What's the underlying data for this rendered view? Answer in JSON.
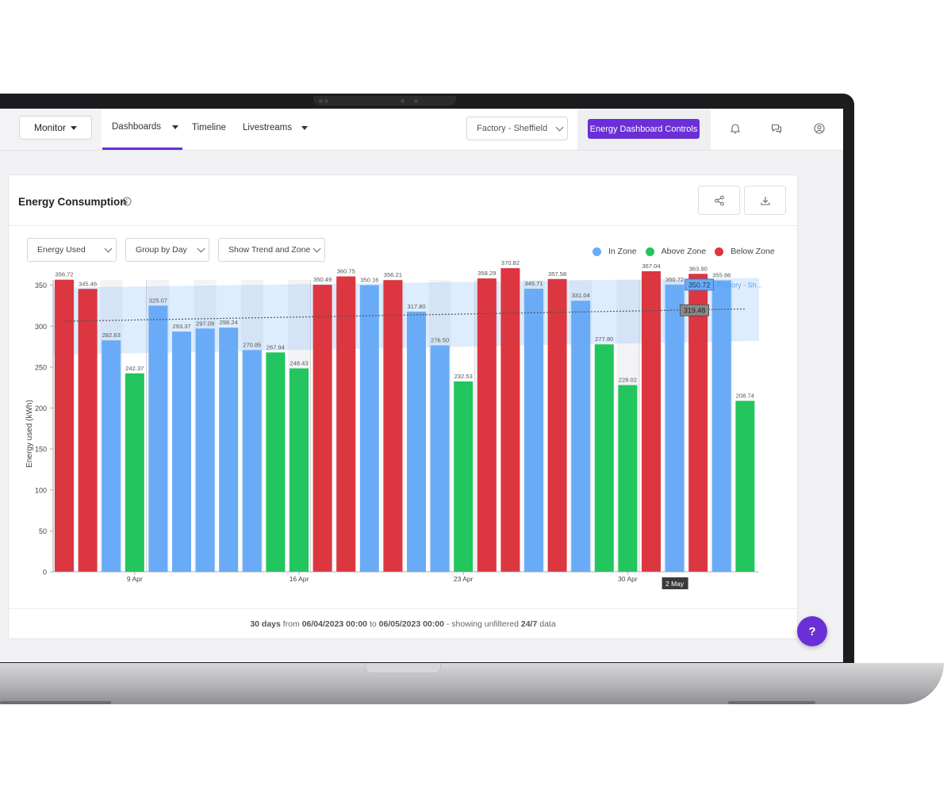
{
  "nav": {
    "monitor_label": "Monitor",
    "tabs": [
      {
        "label": "Dashboards",
        "active": true
      },
      {
        "label": "Timeline",
        "active": false
      },
      {
        "label": "Livestreams",
        "active": false
      }
    ],
    "site_select": "Factory - Sheffield",
    "controls_button": "Energy Dashboard Controls",
    "icons": [
      "bell-icon",
      "chat-icon",
      "user-icon"
    ]
  },
  "card": {
    "title": "Energy Consumption",
    "actions": [
      "share-icon",
      "download-icon"
    ],
    "filters": [
      "Energy Used",
      "Group by Day",
      "Show Trend and Zone"
    ]
  },
  "legend": [
    {
      "label": "In Zone",
      "color": "#6aabf7"
    },
    {
      "label": "Above Zone",
      "color": "#22c55e"
    },
    {
      "label": "Below Zone",
      "color": "#dc3640"
    }
  ],
  "footer": {
    "days": "30 days",
    "from_word": "from",
    "start": "06/04/2023 00:00",
    "to_word": "to",
    "end": "06/05/2023 00:00",
    "suffix": "- showing unfiltered",
    "scope": "24/7",
    "tail": "data"
  },
  "help_label": "?",
  "chart_data": {
    "type": "bar",
    "ylabel": "Energy used (kWh)",
    "ylim": [
      0,
      400
    ],
    "yticks": [
      0,
      50,
      100,
      150,
      200,
      250,
      300,
      350
    ],
    "x_tick_labels": [
      "9 Apr",
      "16 Apr",
      "23 Apr",
      "30 Apr"
    ],
    "values": [
      356.72,
      345.46,
      282.63,
      242.37,
      325.07,
      293.37,
      297.09,
      298.24,
      270.85,
      267.94,
      248.43,
      350.49,
      360.75,
      350.16,
      356.21,
      317.8,
      276.5,
      232.53,
      358.29,
      370.82,
      345.71,
      357.58,
      331.04,
      277.8,
      228.02,
      367.04,
      350.72,
      363.9,
      355.86,
      208.74
    ],
    "zones": [
      "below",
      "below",
      "in",
      "above",
      "in",
      "in",
      "in",
      "in",
      "in",
      "above",
      "above",
      "below",
      "below",
      "in",
      "below",
      "in",
      "in",
      "above",
      "below",
      "below",
      "in",
      "below",
      "in",
      "above",
      "above",
      "below",
      "in",
      "below",
      "in",
      "above"
    ],
    "zone_band": {
      "start_lower": 265,
      "start_upper": 347,
      "end_lower": 282,
      "end_upper": 359
    },
    "trend": {
      "start": 306,
      "end": 321
    },
    "hover": {
      "x_label": "2 May",
      "value_label": "350.72",
      "series_label": "Factory - Sh...",
      "trend_label": "319.48"
    }
  }
}
